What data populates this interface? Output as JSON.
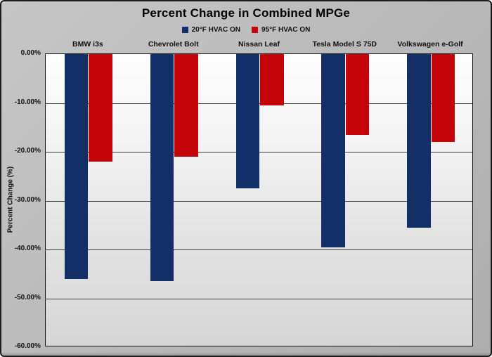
{
  "chart_data": {
    "type": "bar",
    "title": "Percent Change in Combined MPGe",
    "categories": [
      "BMW i3s",
      "Chevrolet Bolt",
      "Nissan Leaf",
      "Tesla Model S 75D",
      "Volkswagen e-Golf"
    ],
    "series": [
      {
        "name": "20°F HVAC ON",
        "color": "#132f67",
        "values": [
          -46,
          -46.5,
          -27.5,
          -39.5,
          -35.5
        ]
      },
      {
        "name": "95°F HVAC ON",
        "color": "#c40408",
        "values": [
          -22,
          -21,
          -10.5,
          -16.5,
          -18
        ]
      }
    ],
    "xlabel": "",
    "ylabel": "Percent Change (%)",
    "ylim": [
      0,
      -60
    ],
    "ytick_step": -10,
    "ytick_labels": [
      "0.00%",
      "-10.00%",
      "-20.00%",
      "-30.00%",
      "-40.00%",
      "-50.00%",
      "-60.00%"
    ],
    "grid": true,
    "legend_position": "top-center",
    "bar_orientation": "vertical-down"
  }
}
